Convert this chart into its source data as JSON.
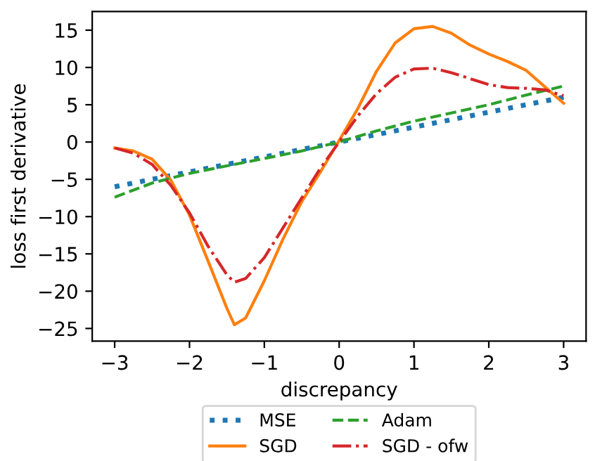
{
  "chart_data": {
    "type": "line",
    "xlabel": "discrepancy",
    "ylabel": "loss first derivative",
    "xlim": [
      -3.3,
      3.3
    ],
    "ylim": [
      -26.7,
      17.5
    ],
    "xticks": [
      {
        "value": -3,
        "label": "−3"
      },
      {
        "value": -2,
        "label": "−2"
      },
      {
        "value": -1,
        "label": "−1"
      },
      0,
      1,
      2,
      3
    ],
    "yticks": [
      {
        "value": -25,
        "label": "−25"
      },
      {
        "value": -20,
        "label": "−20"
      },
      {
        "value": -15,
        "label": "−15"
      },
      {
        "value": -10,
        "label": "−10"
      },
      {
        "value": -5,
        "label": "−5"
      },
      0,
      5,
      10,
      15
    ],
    "grid": false,
    "legend": "bottom",
    "marker": "none",
    "series": [
      {
        "name": "MSE",
        "color": "#1f77b4",
        "line_style": "dotted",
        "x": [
          -3,
          -2,
          -1,
          0,
          1,
          2,
          3
        ],
        "values": [
          -6,
          -4,
          -2,
          0,
          2,
          4,
          6
        ]
      },
      {
        "name": "SGD",
        "color": "#ff7f0e",
        "line_style": "solid",
        "x": [
          -3,
          -2.75,
          -2.5,
          -2.25,
          -2,
          -1.75,
          -1.5,
          -1.4,
          -1.25,
          -1,
          -0.75,
          -0.5,
          -0.25,
          0,
          0.25,
          0.5,
          0.75,
          1,
          1.25,
          1.5,
          1.75,
          2,
          2.25,
          2.5,
          2.75,
          3
        ],
        "values": [
          -0.8,
          -1.2,
          -2.3,
          -5.1,
          -9.8,
          -16,
          -22.3,
          -24.5,
          -23.6,
          -18.6,
          -13,
          -8,
          -4,
          0.2,
          4.5,
          9.5,
          13.3,
          15.2,
          15.5,
          14.6,
          13,
          11.8,
          10.8,
          9.6,
          7.4,
          5.2
        ]
      },
      {
        "name": "Adam",
        "color": "#2ca02c",
        "line_style": "dashed",
        "x": [
          -3,
          -2.5,
          -2,
          -1.5,
          -1,
          -0.5,
          0,
          0.5,
          1,
          1.5,
          2,
          2.5,
          3
        ],
        "values": [
          -7.4,
          -5.5,
          -4.2,
          -3.2,
          -2.2,
          -1.2,
          0,
          1.5,
          2.8,
          3.9,
          5,
          6.3,
          7.5
        ]
      },
      {
        "name": "SGD - ofw",
        "color": "#d62728",
        "line_style": "dashdot",
        "x": [
          -3,
          -2.75,
          -2.5,
          -2.25,
          -2,
          -1.75,
          -1.5,
          -1.4,
          -1.25,
          -1,
          -0.75,
          -0.5,
          -0.25,
          0,
          0.25,
          0.5,
          0.75,
          1,
          1.25,
          1.5,
          1.75,
          2,
          2.25,
          2.5,
          2.75,
          3
        ],
        "values": [
          -0.8,
          -1.5,
          -3,
          -5.8,
          -9.5,
          -14,
          -17.8,
          -18.8,
          -18.3,
          -15.5,
          -11.5,
          -7.5,
          -3.5,
          0,
          3.5,
          6.5,
          8.7,
          9.8,
          9.9,
          9.3,
          8.5,
          7.7,
          7.3,
          7.2,
          7,
          6.2
        ]
      }
    ]
  }
}
